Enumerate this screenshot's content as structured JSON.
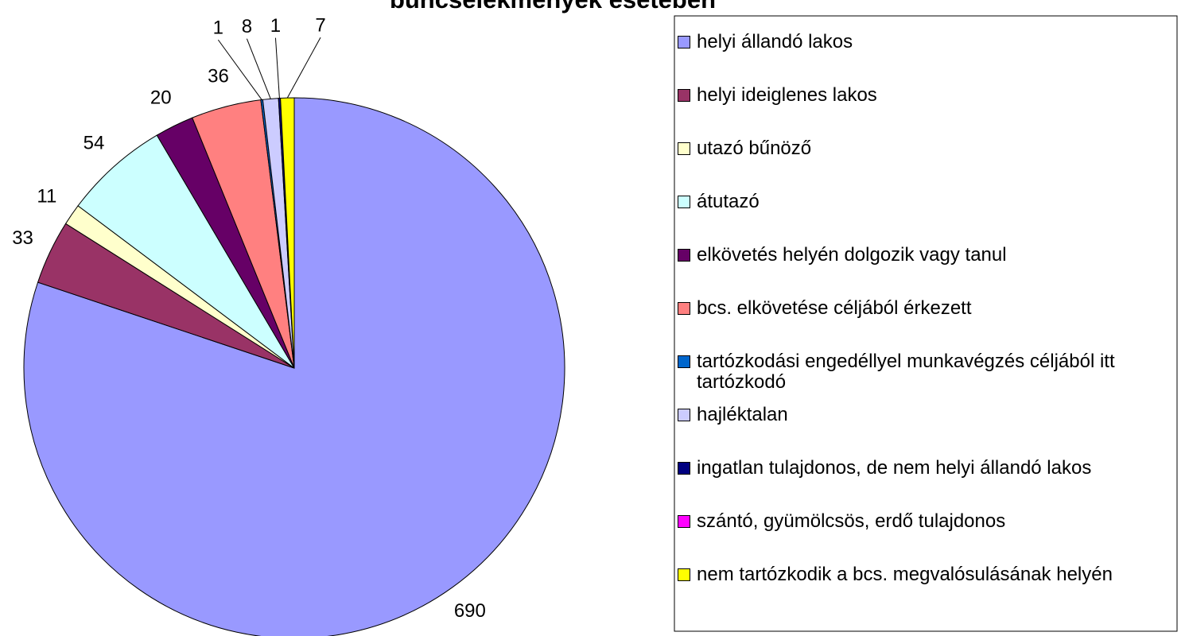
{
  "chart_data": {
    "type": "pie",
    "title": "bűncselekmények esetében",
    "categories": [
      "helyi állandó lakos",
      "helyi ideiglenes lakos",
      "utazó bűnöző",
      "átutazó",
      "elkövetés helyén dolgozik vagy tanul",
      "bcs. elkövetése céljából érkezett",
      "tartózkodási engedéllyel munkavégzés céljából itt tartózkodó",
      "hajléktalan",
      "ingatlan tulajdonos, de nem helyi állandó lakos",
      "szántó, gyümölcsös, erdő tulajdonos",
      "nem tartózkodik a bcs. megvalósulásának helyén"
    ],
    "values": [
      690,
      33,
      11,
      54,
      20,
      36,
      1,
      8,
      1,
      0,
      7
    ],
    "colors": [
      "#9999ff",
      "#993366",
      "#ffffcc",
      "#ccffff",
      "#660066",
      "#ff8080",
      "#0066cc",
      "#ccccff",
      "#000080",
      "#ff00ff",
      "#ffff00"
    ],
    "legend": "right"
  }
}
